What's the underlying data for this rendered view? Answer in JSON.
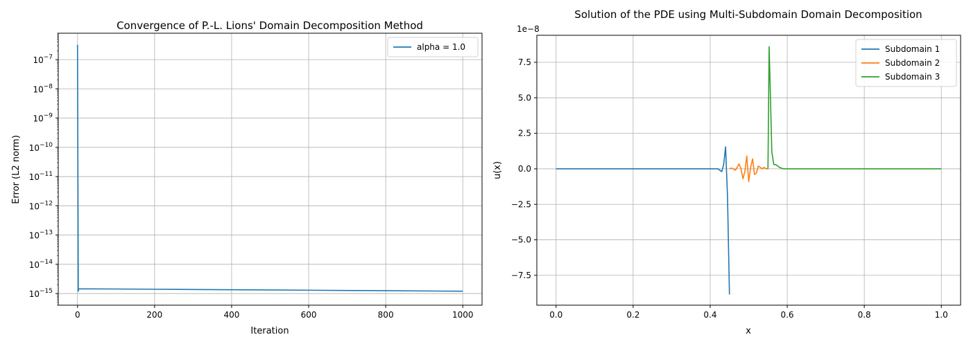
{
  "chart_data": [
    {
      "type": "line",
      "title": "Convergence of P.-L. Lions' Domain Decomposition Method",
      "xlabel": "Iteration",
      "ylabel": "Error (L2 norm)",
      "yscale": "log",
      "xlim": [
        -50,
        1050
      ],
      "ylim": [
        4e-16,
        8e-07
      ],
      "xticks": [
        0,
        200,
        400,
        600,
        800,
        1000
      ],
      "xtick_labels": [
        "0",
        "200",
        "400",
        "600",
        "800",
        "1000"
      ],
      "yticks": [
        1e-15,
        1e-14,
        1e-13,
        1e-12,
        1e-11,
        1e-10,
        1e-09,
        1e-08,
        1e-07
      ],
      "ytick_labels": [
        {
          "base": "10",
          "exp": "−15"
        },
        {
          "base": "10",
          "exp": "−14"
        },
        {
          "base": "10",
          "exp": "−13"
        },
        {
          "base": "10",
          "exp": "−12"
        },
        {
          "base": "10",
          "exp": "−11"
        },
        {
          "base": "10",
          "exp": "−10"
        },
        {
          "base": "10",
          "exp": "−9"
        },
        {
          "base": "10",
          "exp": "−8"
        },
        {
          "base": "10",
          "exp": "−7"
        }
      ],
      "grid": true,
      "legend_position": "top-right",
      "series": [
        {
          "name": "alpha = 1.0",
          "color": "#1f77b4",
          "x": [
            0,
            1,
            2,
            3,
            4,
            100,
            200,
            400,
            600,
            800,
            1000
          ],
          "y": [
            3.2e-07,
            1.5e-11,
            1.2e-15,
            1.45e-15,
            1.45e-15,
            1.43e-15,
            1.4e-15,
            1.35e-15,
            1.3e-15,
            1.25e-15,
            1.2e-15
          ]
        }
      ]
    },
    {
      "type": "line",
      "title": "Solution of the PDE using Multi-Subdomain Domain Decomposition",
      "xlabel": "x",
      "ylabel": "u(x)",
      "offset_text": "1e−8",
      "xlim": [
        -0.05,
        1.05
      ],
      "ylim": [
        -9.6,
        9.4
      ],
      "xticks": [
        0.0,
        0.2,
        0.4,
        0.6,
        0.8,
        1.0
      ],
      "xtick_labels": [
        "0.0",
        "0.2",
        "0.4",
        "0.6",
        "0.8",
        "1.0"
      ],
      "yticks": [
        -7.5,
        -5.0,
        -2.5,
        0.0,
        2.5,
        5.0,
        7.5
      ],
      "ytick_labels": [
        "−7.5",
        "−5.0",
        "−2.5",
        "0.0",
        "2.5",
        "5.0",
        "7.5"
      ],
      "grid": true,
      "legend_position": "top-right",
      "series": [
        {
          "name": "Subdomain 1",
          "color": "#1f77b4",
          "x": [
            0.0,
            0.1,
            0.2,
            0.3,
            0.4,
            0.42,
            0.43,
            0.435,
            0.44,
            0.445,
            0.45
          ],
          "y": [
            0,
            0,
            0,
            0,
            0,
            0,
            -0.2,
            0.3,
            1.55,
            -2.0,
            -8.85
          ]
        },
        {
          "name": "Subdomain 2",
          "color": "#ff7f0e",
          "x": [
            0.45,
            0.455,
            0.46,
            0.465,
            0.47,
            0.475,
            0.48,
            0.485,
            0.49,
            0.495,
            0.5,
            0.505,
            0.51,
            0.515,
            0.52,
            0.525,
            0.53,
            0.535,
            0.54,
            0.545,
            0.55
          ],
          "y": [
            0,
            0.05,
            0.0,
            -0.1,
            0.1,
            0.35,
            0.0,
            -0.7,
            -0.2,
            0.9,
            -0.9,
            0.1,
            0.7,
            -0.4,
            -0.3,
            0.2,
            0.1,
            0.0,
            0.1,
            0.0,
            0.0
          ]
        },
        {
          "name": "Subdomain 3",
          "color": "#2ca02c",
          "x": [
            0.55,
            0.553,
            0.556,
            0.56,
            0.565,
            0.57,
            0.575,
            0.58,
            0.59,
            0.6,
            0.7,
            0.8,
            0.9,
            1.0
          ],
          "y": [
            0.0,
            8.6,
            5.5,
            1.2,
            0.3,
            0.3,
            0.2,
            0.1,
            0.0,
            0.0,
            0.0,
            0.0,
            0.0,
            0.0
          ]
        }
      ]
    }
  ]
}
